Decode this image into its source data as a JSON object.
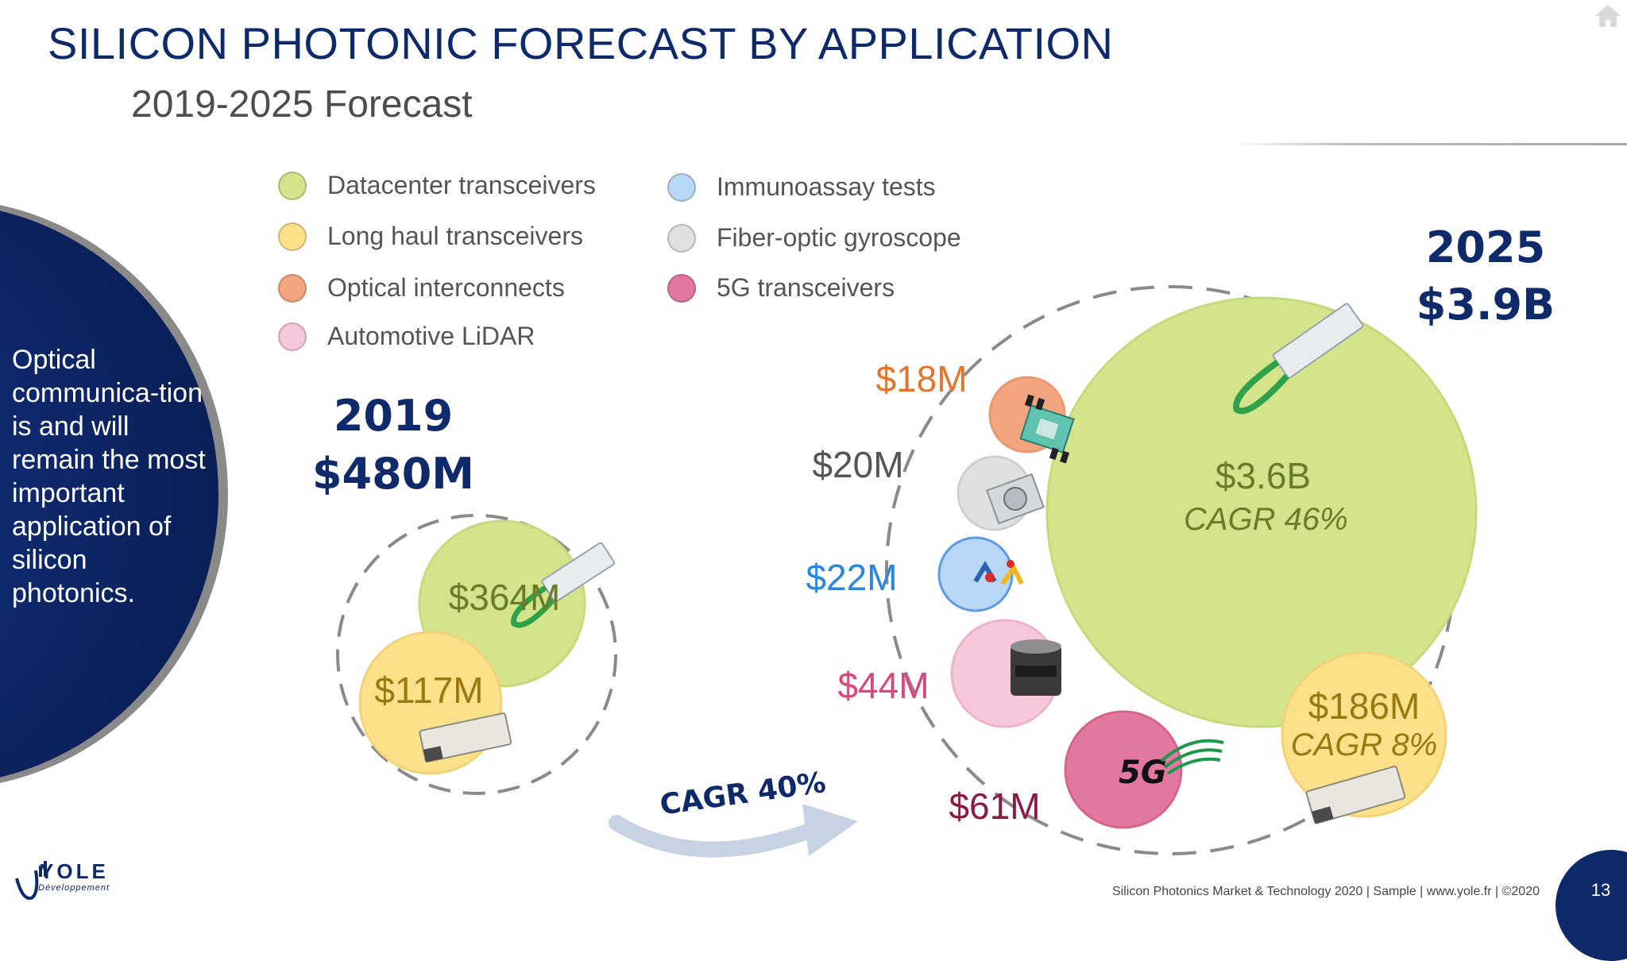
{
  "header": {
    "title": "SILICON PHOTONIC FORECAST BY APPLICATION",
    "subtitle": "2019-2025 Forecast"
  },
  "legend": [
    {
      "label": "Datacenter transceivers",
      "color": "#d3e48a"
    },
    {
      "label": "Long haul transceivers",
      "color": "#fde08a"
    },
    {
      "label": "Optical interconnects",
      "color": "#f2a57e"
    },
    {
      "label": "Automotive LiDAR",
      "color": "#f7c8dc"
    },
    {
      "label": "Immunoassay tests",
      "color": "#b9d7f7"
    },
    {
      "label": "Fiber-optic gyroscope",
      "color": "#e0e0e0"
    },
    {
      "label": "5G transceivers",
      "color": "#e1789f"
    }
  ],
  "side_panel": {
    "text": "Optical communica-tion is and will remain the most important application of silicon photonics."
  },
  "year_2019": {
    "year": "2019",
    "total": "$480M"
  },
  "year_2025": {
    "year": "2025",
    "total": "$3.9B"
  },
  "bubbles_2019": {
    "datacenter": "$364M",
    "long_haul": "$117M"
  },
  "bubbles_2025": {
    "datacenter": "$3.6B",
    "datacenter_cagr": "CAGR 46%",
    "long_haul": "$186M",
    "long_haul_cagr": "CAGR 8%",
    "optical_interconnects": "$18M",
    "gyroscope": "$20M",
    "immunoassay": "$22M",
    "lidar": "$44M",
    "fiveg": "$61M"
  },
  "colors": {
    "navy": "#0f2a6b",
    "datacenter": "#d3e48a",
    "long_haul": "#fde08a",
    "optical_interconnects": "#f2a57e",
    "lidar": "#f7c8dc",
    "immunoassay": "#b9d7f7",
    "gyroscope": "#e0e0e0",
    "fiveg": "#e1789f",
    "label_orange": "#e2762c",
    "label_blue": "#2b86e0",
    "label_pink": "#d8487f",
    "label_maroon": "#8b1a45",
    "label_olive": "#6b7d2a",
    "label_gold": "#9a7a10",
    "label_gray": "#555555"
  },
  "arrow": {
    "label": "CAGR 40%"
  },
  "icons": {
    "home": "home-icon",
    "fiveg_logo": "5G"
  },
  "footer": {
    "text": "Silicon Photonics Market & Technology 2020 | Sample | www.yole.fr | ©2020",
    "page": "13",
    "logo_name": "YOLE",
    "logo_sub": "Développement"
  }
}
